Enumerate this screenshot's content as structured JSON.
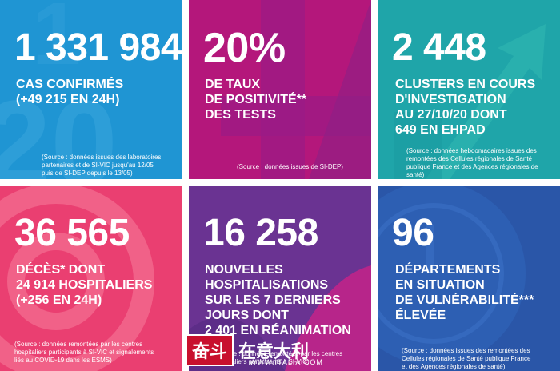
{
  "tiles": [
    {
      "number": "1 331 984",
      "lines": [
        "CAS CONFIRMÉS",
        "(+49 215 EN 24H)"
      ],
      "source": [
        "(Source : données issues des laboratoires",
        "partenaires et de SI-VIC jusqu'au 12/05",
        "puis de SI-DEP depuis le 13/05)"
      ],
      "color": "#1f95d3"
    },
    {
      "number": "20%",
      "lines": [
        "DE TAUX",
        "DE POSITIVITÉ**",
        "DES TESTS"
      ],
      "source": [
        "(Source : données issues de SI-DEP)"
      ],
      "color": "#b4177b"
    },
    {
      "number": "2 448",
      "lines": [
        "CLUSTERS EN COURS",
        "D'INVESTIGATION",
        "AU 27/10/20 DONT",
        "649 EN EHPAD"
      ],
      "source": [
        "(Source : données hebdomadaires issues des",
        "remontées des Cellules régionales de Santé",
        "publique France et des Agences régionales de",
        "santé)"
      ],
      "color": "#1fa5a9"
    },
    {
      "number": "36 565",
      "lines": [
        "DÉCÈS* DONT",
        "24 914 HOSPITALIERS",
        "(+256 en 24H)"
      ],
      "source": [
        "(Source : données remontées par les centres",
        "hospitaliers participants à SI-VIC et signalements",
        "liés au COVID-19 dans les ESMS)"
      ],
      "color": "#ea3f71"
    },
    {
      "number": "16 258",
      "lines": [
        "NOUVELLES",
        "HOSPITALISATIONS",
        "SUR LES 7 DERNIERS",
        "JOURS DONT",
        "2 401 EN RÉANIMATION"
      ],
      "source": [
        "(Source : données remontées par les centres",
        "hospitaliers participants à SI-VIC)"
      ],
      "color": "#6a3392"
    },
    {
      "number": "96",
      "lines": [
        "DÉPARTEMENTS",
        "EN SITUATION",
        "DE VULNÉRABILITÉ***",
        "ÉLEVÉE"
      ],
      "source": [
        "(Source : données issues des remontées des",
        "Cellules régionales de Santé publique France",
        "et des Agences régionales de santé)"
      ],
      "color": "#2a56a8"
    }
  ],
  "watermark": {
    "box": "奋斗",
    "text": "在意大利",
    "url": "WWW.ITALIA.COM"
  }
}
